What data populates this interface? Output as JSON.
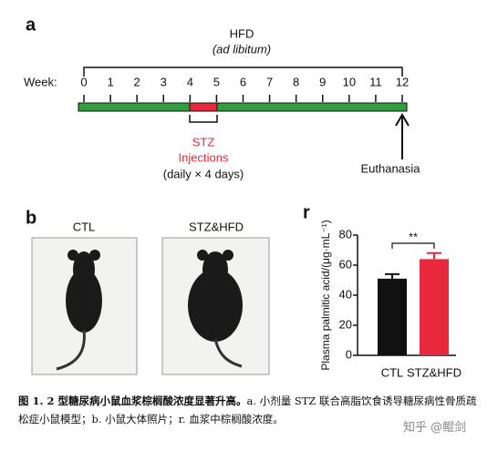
{
  "panel_a": {
    "label": "a",
    "hfd": "HFD",
    "hfd_note": "(ad libitum)",
    "week_label": "Week:",
    "weeks": [
      0,
      1,
      2,
      3,
      4,
      5,
      6,
      7,
      8,
      9,
      10,
      11,
      12
    ],
    "stz": "STZ",
    "stz_line2": "Injections",
    "stz_note": "(daily × 4 days)",
    "end": "Euthanasia"
  },
  "panel_b": {
    "label": "b",
    "photos": [
      "CTL",
      "STZ&HFD"
    ]
  },
  "chart_data": {
    "type": "bar",
    "panel_label": "r",
    "y_label": "Plasma palmitic acid/(μg·mL⁻¹)",
    "categories": [
      "CTL",
      "STZ&HFD"
    ],
    "values": [
      51,
      64
    ],
    "errors": [
      3,
      4
    ],
    "colors": [
      "#111111",
      "#e8283c"
    ],
    "ylim": [
      0,
      80
    ],
    "yticks": [
      0,
      20,
      40,
      60,
      80
    ],
    "significance": "**"
  },
  "caption": {
    "bold": "图 1. 2 型糖尿病小鼠血浆棕榈酸浓度显著升高。",
    "text": "a. 小剂量 STZ 联合高脂饮食诱导糖尿病性骨质疏松症小鼠模型；b. 小鼠大体照片；r. 血浆中棕榈酸浓度。"
  },
  "watermark": "知乎 @鲲剑"
}
